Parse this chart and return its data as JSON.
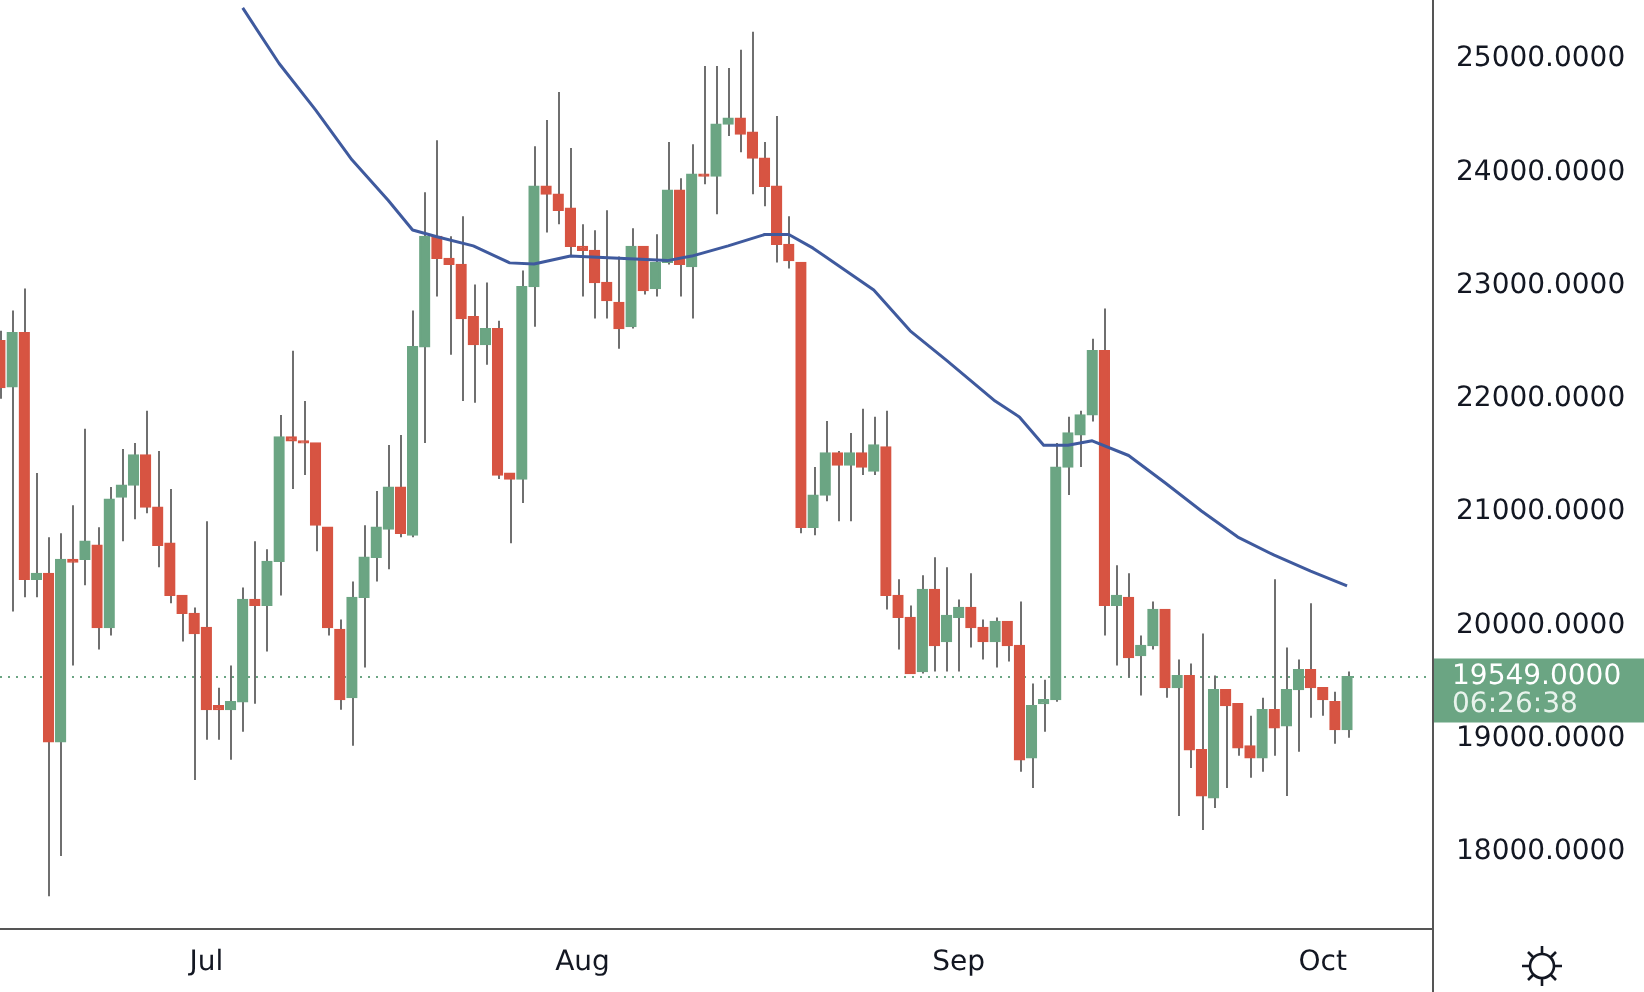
{
  "chart_data": {
    "type": "candlestick",
    "x": [
      "--06-14",
      "--06-15",
      "--06-16",
      "--06-17",
      "--06-18",
      "--06-19",
      "--06-20",
      "--06-21",
      "--06-22",
      "--06-23",
      "--06-24",
      "--06-25",
      "--06-26",
      "--06-27",
      "--06-28",
      "--06-29",
      "--06-30",
      "--07-01",
      "--07-02",
      "--07-03",
      "--07-04",
      "--07-05",
      "--07-06",
      "--07-07",
      "--07-08",
      "--07-09",
      "--07-10",
      "--07-11",
      "--07-12",
      "--07-13",
      "--07-14",
      "--07-15",
      "--07-16",
      "--07-17",
      "--07-18",
      "--07-19",
      "--07-20",
      "--07-21",
      "--07-22",
      "--07-23",
      "--07-24",
      "--07-25",
      "--07-26",
      "--07-27",
      "--07-28",
      "--07-29",
      "--07-30",
      "--07-31",
      "--08-01",
      "--08-02",
      "--08-03",
      "--08-04",
      "--08-05",
      "--08-06",
      "--08-07",
      "--08-08",
      "--08-09",
      "--08-10",
      "--08-11",
      "--08-12",
      "--08-13",
      "--08-14",
      "--08-15",
      "--08-16",
      "--08-17",
      "--08-18",
      "--08-19",
      "--08-20",
      "--08-21",
      "--08-22",
      "--08-23",
      "--08-24",
      "--08-25",
      "--08-26",
      "--08-27",
      "--08-28",
      "--08-29",
      "--08-30",
      "--08-31",
      "--09-01",
      "--09-02",
      "--09-03",
      "--09-04",
      "--09-05",
      "--09-06",
      "--09-07",
      "--09-08",
      "--09-09",
      "--09-10",
      "--09-11",
      "--09-12",
      "--09-13",
      "--09-14",
      "--09-15",
      "--09-16",
      "--09-17",
      "--09-18",
      "--09-19",
      "--09-20",
      "--09-21",
      "--09-22",
      "--09-23",
      "--09-24",
      "--09-25",
      "--09-26",
      "--09-27",
      "--09-28",
      "--09-29",
      "--09-30",
      "--10-01",
      "--10-02",
      "--10-03"
    ],
    "ohlc": [
      [
        22513,
        22600,
        22000,
        22100
      ],
      [
        22106,
        22779,
        20124,
        22584
      ],
      [
        22584,
        22974,
        20248,
        20407
      ],
      [
        20407,
        21345,
        20248,
        20460
      ],
      [
        20460,
        20779,
        17610,
        18973
      ],
      [
        18973,
        20814,
        17965,
        20584
      ],
      [
        20584,
        21062,
        19646,
        20560
      ],
      [
        20584,
        21735,
        20354,
        20743
      ],
      [
        20708,
        20867,
        19788,
        19982
      ],
      [
        19982,
        21221,
        19911,
        21115
      ],
      [
        21133,
        21558,
        20743,
        21239
      ],
      [
        21239,
        21611,
        20938,
        21505
      ],
      [
        21505,
        21894,
        20991,
        21044
      ],
      [
        21044,
        21540,
        20513,
        20708
      ],
      [
        20726,
        21204,
        20195,
        20265
      ],
      [
        20265,
        20265,
        19858,
        20106
      ],
      [
        20106,
        20159,
        18637,
        19929
      ],
      [
        19982,
        20920,
        18991,
        19257
      ],
      [
        19292,
        19451,
        18991,
        19257
      ],
      [
        19257,
        19646,
        18814,
        19327
      ],
      [
        19327,
        20336,
        19062,
        20230
      ],
      [
        20230,
        20743,
        19310,
        20177
      ],
      [
        20177,
        20673,
        19770,
        20566
      ],
      [
        20566,
        21858,
        20265,
        21664
      ],
      [
        21664,
        22425,
        21204,
        21629
      ],
      [
        21629,
        21982,
        21327,
        21611
      ],
      [
        21611,
        21611,
        20655,
        20885
      ],
      [
        20867,
        20867,
        19911,
        19982
      ],
      [
        19965,
        20053,
        19257,
        19345
      ],
      [
        19363,
        20389,
        18938,
        20248
      ],
      [
        20248,
        20885,
        19628,
        20602
      ],
      [
        20602,
        21186,
        20389,
        20867
      ],
      [
        20850,
        21593,
        20496,
        21221
      ],
      [
        21221,
        21682,
        20779,
        20814
      ],
      [
        20797,
        22779,
        20779,
        22460
      ],
      [
        22460,
        23823,
        21611,
        23434
      ],
      [
        23434,
        24283,
        22903,
        23239
      ],
      [
        23239,
        23434,
        22390,
        23186
      ],
      [
        23186,
        23611,
        21982,
        22708
      ],
      [
        22726,
        23009,
        21965,
        22478
      ],
      [
        22478,
        23027,
        22301,
        22620
      ],
      [
        22620,
        22690,
        21292,
        21328
      ],
      [
        21345,
        21345,
        20726,
        21292
      ],
      [
        21292,
        23133,
        21080,
        22991
      ],
      [
        22991,
        24230,
        22637,
        23876
      ],
      [
        23876,
        24460,
        23469,
        23806
      ],
      [
        23806,
        24708,
        23540,
        23664
      ],
      [
        23682,
        24213,
        23257,
        23345
      ],
      [
        23345,
        23540,
        22903,
        23310
      ],
      [
        23310,
        23487,
        22708,
        23027
      ],
      [
        23027,
        23664,
        22708,
        22867
      ],
      [
        22850,
        23257,
        22443,
        22620
      ],
      [
        22637,
        23505,
        22620,
        23345
      ],
      [
        23345,
        23345,
        22920,
        22956
      ],
      [
        22974,
        23452,
        22903,
        23204
      ],
      [
        23204,
        24266,
        23186,
        23841
      ],
      [
        23841,
        23947,
        22903,
        23186
      ],
      [
        23168,
        24248,
        22708,
        23983
      ],
      [
        23983,
        24938,
        23894,
        23965
      ],
      [
        23965,
        24938,
        23629,
        24425
      ],
      [
        24425,
        24920,
        24319,
        24478
      ],
      [
        24478,
        25080,
        24177,
        24336
      ],
      [
        24354,
        25239,
        23805,
        24124
      ],
      [
        24124,
        24266,
        23699,
        23876
      ],
      [
        23876,
        24496,
        23204,
        23363
      ],
      [
        23363,
        23611,
        23150,
        23221
      ],
      [
        23204,
        23204,
        20814,
        20867
      ],
      [
        20867,
        21398,
        20797,
        21151
      ],
      [
        21151,
        21805,
        21097,
        21522
      ],
      [
        21522,
        21540,
        20920,
        21416
      ],
      [
        21416,
        21699,
        20920,
        21522
      ],
      [
        21522,
        21912,
        21328,
        21398
      ],
      [
        21363,
        21841,
        21328,
        21593
      ],
      [
        21575,
        21894,
        20142,
        20266
      ],
      [
        20266,
        20407,
        19788,
        20071
      ],
      [
        20071,
        20177,
        19575,
        19575
      ],
      [
        19593,
        20443,
        19575,
        20319
      ],
      [
        20319,
        20602,
        19593,
        19823
      ],
      [
        19858,
        20513,
        19593,
        20088
      ],
      [
        20071,
        20230,
        19593,
        20159
      ],
      [
        20159,
        20460,
        19805,
        19982
      ],
      [
        19982,
        20053,
        19699,
        19858
      ],
      [
        19858,
        20071,
        19628,
        20035
      ],
      [
        20035,
        20035,
        19681,
        19823
      ],
      [
        19823,
        20212,
        18708,
        18814
      ],
      [
        18831,
        19487,
        18566,
        19292
      ],
      [
        19310,
        19522,
        19062,
        19345
      ],
      [
        19345,
        21611,
        19327,
        21398
      ],
      [
        21398,
        21841,
        21151,
        21699
      ],
      [
        21682,
        21894,
        21398,
        21858
      ],
      [
        21858,
        22531,
        21800,
        22425
      ],
      [
        22425,
        22797,
        19911,
        20177
      ],
      [
        20177,
        20531,
        19646,
        20265
      ],
      [
        20248,
        20460,
        19540,
        19717
      ],
      [
        19735,
        19911,
        19381,
        19823
      ],
      [
        19823,
        20212,
        19788,
        20142
      ],
      [
        20142,
        20142,
        19363,
        19451
      ],
      [
        19451,
        19699,
        18319,
        19558
      ],
      [
        19558,
        19664,
        18743,
        18903
      ],
      [
        18903,
        19929,
        18195,
        18496
      ],
      [
        18478,
        19558,
        18389,
        19434
      ],
      [
        19434,
        19434,
        18566,
        19292
      ],
      [
        19310,
        19310,
        18850,
        18920
      ],
      [
        18938,
        19204,
        18655,
        18832
      ],
      [
        18832,
        19363,
        18708,
        19257
      ],
      [
        19257,
        20407,
        18850,
        19097
      ],
      [
        19115,
        19805,
        18496,
        19434
      ],
      [
        19434,
        19699,
        18885,
        19611
      ],
      [
        19611,
        20195,
        19186,
        19451
      ],
      [
        19451,
        19451,
        19204,
        19345
      ],
      [
        19327,
        19416,
        18956,
        19080
      ],
      [
        19080,
        19593,
        19009,
        19549
      ]
    ],
    "colors": [
      "#d75442",
      "#6ba583",
      "#d75442",
      "#6ba583",
      "#d75442",
      "#6ba583",
      "#d75442",
      "#6ba583",
      "#d75442",
      "#6ba583",
      "#6ba583",
      "#6ba583",
      "#d75442",
      "#d75442",
      "#d75442",
      "#d75442",
      "#d75442",
      "#d75442",
      "#d75442",
      "#6ba583",
      "#6ba583",
      "#d75442",
      "#6ba583",
      "#6ba583",
      "#d75442",
      "#d75442",
      "#d75442",
      "#d75442",
      "#d75442",
      "#6ba583",
      "#6ba583",
      "#6ba583",
      "#6ba583",
      "#d75442",
      "#6ba583",
      "#6ba583",
      "#d75442",
      "#d75442",
      "#d75442",
      "#d75442",
      "#6ba583",
      "#d75442",
      "#d75442",
      "#6ba583",
      "#6ba583",
      "#d75442",
      "#d75442",
      "#d75442",
      "#d75442",
      "#d75442",
      "#d75442",
      "#d75442",
      "#6ba583",
      "#d75442",
      "#6ba583",
      "#6ba583",
      "#d75442",
      "#6ba583",
      "#d75442",
      "#6ba583",
      "#6ba583",
      "#d75442",
      "#d75442",
      "#d75442",
      "#d75442",
      "#d75442",
      "#d75442",
      "#6ba583",
      "#6ba583",
      "#d75442",
      "#6ba583",
      "#d75442",
      "#6ba583",
      "#d75442",
      "#d75442",
      "#d75442",
      "#6ba583",
      "#d75442",
      "#6ba583",
      "#6ba583",
      "#d75442",
      "#d75442",
      "#6ba583",
      "#d75442",
      "#d75442",
      "#6ba583",
      "#6ba583",
      "#6ba583",
      "#6ba583",
      "#6ba583",
      "#6ba583",
      "#d75442",
      "#6ba583",
      "#d75442",
      "#6ba583",
      "#6ba583",
      "#d75442",
      "#6ba583",
      "#d75442",
      "#d75442",
      "#6ba583",
      "#d75442",
      "#d75442",
      "#d75442",
      "#6ba583",
      "#d75442",
      "#6ba583",
      "#6ba583",
      "#d75442",
      "#d75442",
      "#d75442",
      "#6ba583"
    ],
    "series": [
      {
        "type": "line",
        "color": "#3f5a9e",
        "x": [
          "--07-04",
          "--07-07",
          "--07-10",
          "--07-13",
          "--07-16",
          "--07-18",
          "--07-20",
          "--07-23",
          "--07-26",
          "--07-28",
          "--07-31",
          "--08-04",
          "--08-08",
          "--08-10",
          "--08-13",
          "--08-16",
          "--08-18",
          "--08-20",
          "--08-25",
          "--08-28",
          "--08-31",
          "--09-04",
          "--09-06",
          "--09-08",
          "--09-10",
          "--09-12",
          "--09-15",
          "--09-18",
          "--09-21",
          "--09-24",
          "--09-27",
          "--09-30",
          "--10-03"
        ],
        "values": [
          25450,
          24960,
          24550,
          24110,
          23750,
          23490,
          23430,
          23350,
          23200,
          23190,
          23260,
          23240,
          23220,
          23260,
          23350,
          23450,
          23450,
          23330,
          22960,
          22600,
          22340,
          21980,
          21840,
          21590,
          21590,
          21630,
          21500,
          21260,
          21010,
          20780,
          20620,
          20480,
          20350
        ]
      }
    ],
    "marker": "none",
    "xlim": [
      "--06-14",
      "--10-10"
    ],
    "xticks": [
      {
        "value": "--07-01",
        "label": "Jul"
      },
      {
        "value": "--08-01",
        "label": "Aug"
      },
      {
        "value": "--09-01",
        "label": "Sep"
      },
      {
        "value": "--10-01",
        "label": "Oct"
      }
    ],
    "ylim": [
      17330,
      25520
    ],
    "yticks": [
      {
        "value": 18000,
        "label": "18000.0000"
      },
      {
        "value": 19000,
        "label": "19000.0000"
      },
      {
        "value": 20000,
        "label": "20000.0000"
      },
      {
        "value": 21000,
        "label": "21000.0000"
      },
      {
        "value": 22000,
        "label": "22000.0000"
      },
      {
        "value": 23000,
        "label": "23000.0000"
      },
      {
        "value": 24000,
        "label": "24000.0000"
      },
      {
        "value": 25000,
        "label": "25000.0000"
      }
    ],
    "ref_lines": [
      {
        "axis": "y",
        "value": 19549,
        "label": "19549.0000",
        "color": "#6ba583",
        "line_style": "dotted"
      }
    ],
    "annotations": [
      "06:26:38"
    ]
  }
}
